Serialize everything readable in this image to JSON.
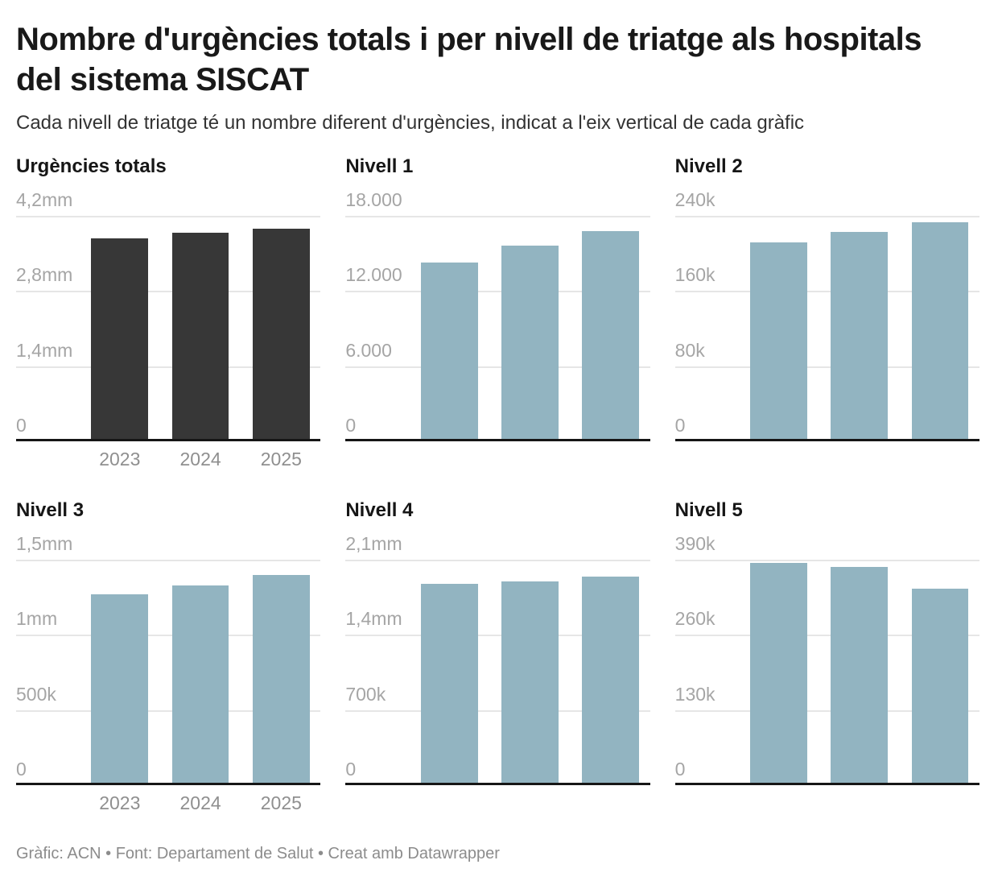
{
  "header": {
    "title": "Nombre d'urgències totals i per nivell de triatge als hospitals\ndel sistema SISCAT",
    "subtitle": "Cada nivell de triatge té un nombre diferent d'urgències, indicat a l'eix vertical de cada gràfic"
  },
  "footer": {
    "text": "Gràfic: ACN • Font: Departament de Salut • Creat amb Datawrapper"
  },
  "colors": {
    "totals_bar": "#373737",
    "level_bar": "#92b4c1",
    "gridline": "#e6e6e6",
    "baseline": "#161616",
    "axis_text": "#a5a5a5",
    "year_text": "#8f8f8f"
  },
  "chart_data": [
    {
      "type": "bar",
      "title": "Urgències totals",
      "categories": [
        "2023",
        "2024",
        "2025"
      ],
      "values": [
        3780000,
        3880000,
        3960000
      ],
      "ylim": [
        0,
        4200000
      ],
      "ytick_labels": [
        "4,2mm",
        "2,8mm",
        "1,4mm",
        "0"
      ],
      "bar_color": "#373737",
      "show_x_labels": true,
      "grid": true,
      "legend": "none"
    },
    {
      "type": "bar",
      "title": "Nivell 1",
      "categories": [
        "2023",
        "2024",
        "2025"
      ],
      "values": [
        14300,
        15650,
        16800
      ],
      "ylim": [
        0,
        18000
      ],
      "ytick_labels": [
        "18.000",
        "12.000",
        "6.000",
        "0"
      ],
      "bar_color": "#92b4c1",
      "show_x_labels": false,
      "grid": true,
      "legend": "none"
    },
    {
      "type": "bar",
      "title": "Nivell 2",
      "categories": [
        "2023",
        "2024",
        "2025"
      ],
      "values": [
        212000,
        223000,
        233000
      ],
      "ylim": [
        0,
        240000
      ],
      "ytick_labels": [
        "240k",
        "160k",
        "80k",
        "0"
      ],
      "bar_color": "#92b4c1",
      "show_x_labels": false,
      "grid": true,
      "legend": "none"
    },
    {
      "type": "bar",
      "title": "Nivell 3",
      "categories": [
        "2023",
        "2024",
        "2025"
      ],
      "values": [
        1270000,
        1330000,
        1400000
      ],
      "ylim": [
        0,
        1500000
      ],
      "ytick_labels": [
        "1,5mm",
        "1mm",
        "500k",
        "0"
      ],
      "bar_color": "#92b4c1",
      "show_x_labels": true,
      "grid": true,
      "legend": "none"
    },
    {
      "type": "bar",
      "title": "Nivell 4",
      "categories": [
        "2023",
        "2024",
        "2025"
      ],
      "values": [
        1875000,
        1900000,
        1940000
      ],
      "ylim": [
        0,
        2100000
      ],
      "ytick_labels": [
        "2,1mm",
        "1,4mm",
        "700k",
        "0"
      ],
      "bar_color": "#92b4c1",
      "show_x_labels": false,
      "grid": true,
      "legend": "none"
    },
    {
      "type": "bar",
      "title": "Nivell 5",
      "categories": [
        "2023",
        "2024",
        "2025"
      ],
      "values": [
        384000,
        377000,
        340000
      ],
      "ylim": [
        0,
        390000
      ],
      "ytick_labels": [
        "390k",
        "260k",
        "130k",
        "0"
      ],
      "bar_color": "#92b4c1",
      "show_x_labels": false,
      "grid": true,
      "legend": "none"
    }
  ]
}
